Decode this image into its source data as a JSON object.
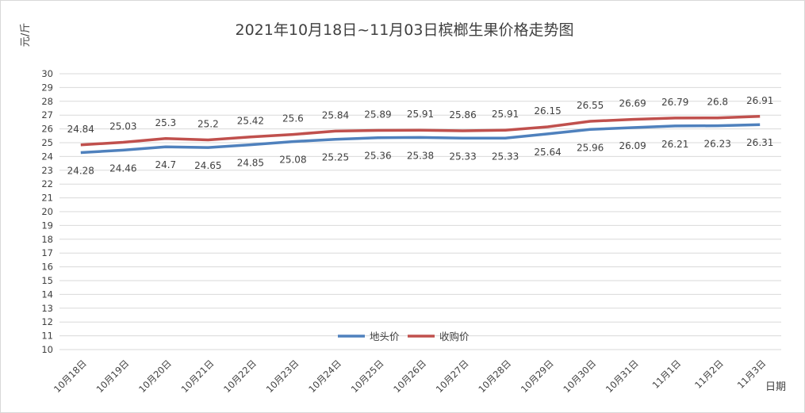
{
  "chart_data": {
    "type": "line",
    "title": "2021年10月18日~11月03日槟榔生果价格走势图",
    "xlabel": "日期",
    "ylabel": "元/斤",
    "ylim": [
      10,
      30
    ],
    "ytick_step": 1,
    "grid": true,
    "legend_position": "bottom-center",
    "categories": [
      "10月18日",
      "10月19日",
      "10月20日",
      "10月21日",
      "10月22日",
      "10月23日",
      "10月24日",
      "10月25日",
      "10月26日",
      "10月27日",
      "10月28日",
      "10月29日",
      "10月30日",
      "10月31日",
      "11月1日",
      "11月2日",
      "11月3日"
    ],
    "series": [
      {
        "name": "地头价",
        "color": "#4f81bd",
        "label_position": "below",
        "values": [
          24.28,
          24.46,
          24.7,
          24.65,
          24.85,
          25.08,
          25.25,
          25.36,
          25.38,
          25.33,
          25.33,
          25.64,
          25.96,
          26.09,
          26.21,
          26.23,
          26.31
        ]
      },
      {
        "name": "收购价",
        "color": "#c0504d",
        "label_position": "above",
        "values": [
          24.84,
          25.03,
          25.3,
          25.2,
          25.42,
          25.6,
          25.84,
          25.89,
          25.91,
          25.86,
          25.91,
          26.15,
          26.55,
          26.69,
          26.79,
          26.8,
          26.91
        ]
      }
    ]
  }
}
